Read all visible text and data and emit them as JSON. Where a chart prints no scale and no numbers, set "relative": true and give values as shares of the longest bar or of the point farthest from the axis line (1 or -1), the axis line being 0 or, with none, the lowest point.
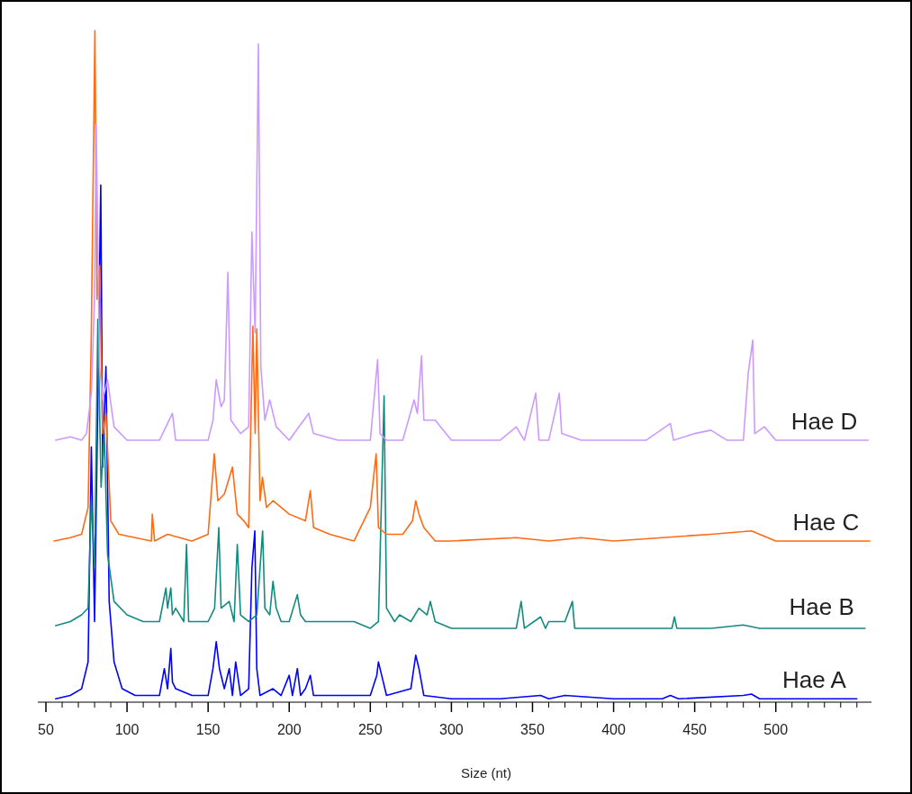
{
  "chart_data": {
    "type": "line",
    "xlabel": "Size (nt)",
    "relative": true,
    "grid": false,
    "marker": "none",
    "line_style": "solid",
    "xlim": [
      45,
      559
    ],
    "xticks": [
      50,
      {
        "value": 60,
        "label": null
      },
      {
        "value": 70,
        "label": null
      },
      {
        "value": 80,
        "label": null
      },
      {
        "value": 90,
        "label": null
      },
      100,
      {
        "value": 110,
        "label": null
      },
      {
        "value": 120,
        "label": null
      },
      {
        "value": 130,
        "label": null
      },
      {
        "value": 140,
        "label": null
      },
      150,
      {
        "value": 160,
        "label": null
      },
      {
        "value": 170,
        "label": null
      },
      {
        "value": 180,
        "label": null
      },
      {
        "value": 190,
        "label": null
      },
      200,
      {
        "value": 210,
        "label": null
      },
      {
        "value": 220,
        "label": null
      },
      {
        "value": 230,
        "label": null
      },
      {
        "value": 240,
        "label": null
      },
      250,
      {
        "value": 260,
        "label": null
      },
      {
        "value": 270,
        "label": null
      },
      {
        "value": 280,
        "label": null
      },
      {
        "value": 290,
        "label": null
      },
      300,
      {
        "value": 310,
        "label": null
      },
      {
        "value": 320,
        "label": null
      },
      {
        "value": 330,
        "label": null
      },
      {
        "value": 340,
        "label": null
      },
      350,
      {
        "value": 360,
        "label": null
      },
      {
        "value": 370,
        "label": null
      },
      {
        "value": 380,
        "label": null
      },
      {
        "value": 390,
        "label": null
      },
      400,
      {
        "value": 410,
        "label": null
      },
      {
        "value": 420,
        "label": null
      },
      {
        "value": 430,
        "label": null
      },
      {
        "value": 440,
        "label": null
      },
      450,
      {
        "value": 460,
        "label": null
      },
      {
        "value": 470,
        "label": null
      },
      {
        "value": 480,
        "label": null
      },
      {
        "value": 490,
        "label": null
      },
      500,
      {
        "value": 510,
        "label": null
      },
      {
        "value": 520,
        "label": null
      },
      {
        "value": 530,
        "label": null
      },
      {
        "value": 540,
        "label": null
      },
      {
        "value": 550,
        "label": null
      }
    ],
    "series": [
      {
        "name": "Hae A",
        "color": "#0000ff",
        "x": [
          56,
          65,
          72,
          76,
          78,
          80,
          82,
          83.8,
          85,
          87,
          89,
          92,
          97,
          105,
          120,
          123,
          125,
          127,
          128,
          130,
          140,
          150,
          153,
          155,
          157,
          160,
          163,
          165,
          167,
          170,
          175,
          177,
          178.8,
          180,
          182,
          190,
          195,
          200,
          202,
          205,
          207,
          210,
          213,
          215,
          230,
          250,
          254,
          255,
          257,
          260,
          275,
          278,
          280,
          283,
          300,
          330,
          355,
          360,
          370,
          400,
          430,
          435,
          440,
          480,
          485,
          490,
          550
        ],
        "values": [
          0.005,
          0.01,
          0.02,
          0.06,
          0.38,
          0.12,
          0.45,
          0.77,
          0.35,
          0.5,
          0.15,
          0.06,
          0.02,
          0.01,
          0.01,
          0.05,
          0.02,
          0.08,
          0.03,
          0.02,
          0.01,
          0.01,
          0.05,
          0.09,
          0.05,
          0.02,
          0.05,
          0.01,
          0.06,
          0.01,
          0.02,
          0.2,
          0.255,
          0.05,
          0.01,
          0.02,
          0.01,
          0.04,
          0.01,
          0.05,
          0.01,
          0.02,
          0.04,
          0.01,
          0.01,
          0.01,
          0.04,
          0.06,
          0.04,
          0.01,
          0.02,
          0.07,
          0.05,
          0.01,
          0.005,
          0.005,
          0.01,
          0.005,
          0.01,
          0.005,
          0.005,
          0.01,
          0.005,
          0.01,
          0.012,
          0.005,
          0.005
        ]
      },
      {
        "name": "Hae B",
        "color": "#138a7f",
        "x": [
          56,
          65,
          72,
          76,
          78,
          80,
          82,
          84,
          86,
          88,
          92,
          100,
          110,
          120,
          124,
          125,
          127,
          128,
          130,
          135,
          136.7,
          138,
          145,
          150,
          154,
          156.6,
          158,
          163,
          166,
          168,
          170,
          175,
          180,
          183.6,
          185,
          188,
          190,
          192,
          195,
          200,
          205,
          207,
          210,
          220,
          240,
          250,
          255,
          258.5,
          260,
          265,
          268,
          275,
          280,
          285,
          287,
          290,
          300,
          320,
          340,
          343,
          345,
          355,
          358,
          360,
          370,
          374.6,
          376,
          390,
          420,
          436,
          437.5,
          439,
          460,
          480,
          490,
          500,
          555
        ],
        "values": [
          0.114,
          0.12,
          0.13,
          0.14,
          0.3,
          0.2,
          0.57,
          0.32,
          0.4,
          0.22,
          0.15,
          0.13,
          0.12,
          0.12,
          0.17,
          0.14,
          0.17,
          0.13,
          0.14,
          0.12,
          0.235,
          0.12,
          0.12,
          0.12,
          0.14,
          0.26,
          0.14,
          0.15,
          0.12,
          0.235,
          0.13,
          0.12,
          0.13,
          0.255,
          0.14,
          0.13,
          0.18,
          0.14,
          0.12,
          0.12,
          0.16,
          0.13,
          0.12,
          0.12,
          0.12,
          0.11,
          0.12,
          0.456,
          0.14,
          0.12,
          0.13,
          0.12,
          0.14,
          0.13,
          0.15,
          0.12,
          0.11,
          0.11,
          0.11,
          0.15,
          0.11,
          0.127,
          0.11,
          0.12,
          0.12,
          0.15,
          0.11,
          0.11,
          0.11,
          0.11,
          0.127,
          0.11,
          0.11,
          0.115,
          0.11,
          0.11,
          0.11
        ]
      },
      {
        "name": "Hae C",
        "color": "#ff6a13",
        "x": [
          55,
          65,
          72,
          76,
          78,
          80.2,
          81.5,
          83,
          85,
          87,
          90,
          95,
          105,
          115,
          115.6,
          117,
          125,
          140,
          150,
          153.8,
          156,
          160,
          165,
          168,
          172,
          175,
          177.6,
          179,
          180,
          182,
          183.5,
          186,
          190,
          200,
          210,
          213,
          215,
          225,
          240,
          250,
          253.6,
          255,
          260,
          270,
          276,
          278,
          280,
          283,
          290,
          300,
          340,
          360,
          380,
          400,
          430,
          460,
          485,
          500,
          558
        ],
        "values": [
          0.24,
          0.245,
          0.25,
          0.29,
          0.55,
          1.0,
          0.6,
          0.65,
          0.4,
          0.43,
          0.27,
          0.25,
          0.245,
          0.24,
          0.28,
          0.24,
          0.25,
          0.24,
          0.25,
          0.37,
          0.3,
          0.31,
          0.35,
          0.28,
          0.27,
          0.26,
          0.56,
          0.4,
          0.556,
          0.3,
          0.335,
          0.29,
          0.3,
          0.28,
          0.27,
          0.315,
          0.26,
          0.25,
          0.24,
          0.29,
          0.37,
          0.26,
          0.25,
          0.25,
          0.27,
          0.3,
          0.28,
          0.26,
          0.24,
          0.24,
          0.245,
          0.24,
          0.245,
          0.24,
          0.245,
          0.25,
          0.255,
          0.24,
          0.24
        ]
      },
      {
        "name": "Hae D",
        "color": "#cc99ff",
        "x": [
          56,
          65,
          72,
          75,
          78,
          80,
          81,
          83,
          85,
          88,
          92,
          100,
          120,
          128,
          130,
          140,
          150,
          153,
          155,
          158,
          160,
          162.2,
          164,
          170,
          175,
          177,
          179,
          181,
          182.5,
          185,
          188,
          192,
          200,
          212,
          215,
          230,
          250,
          254.5,
          256,
          260,
          270,
          277,
          279,
          281.6,
          283,
          290,
          300,
          330,
          340,
          345,
          352,
          354,
          360,
          366.5,
          368,
          380,
          420,
          435,
          437,
          450,
          460,
          470,
          480,
          483,
          485.8,
          487,
          493,
          500,
          557
        ],
        "values": [
          0.39,
          0.395,
          0.39,
          0.4,
          0.46,
          0.6,
          0.86,
          0.5,
          0.45,
          0.48,
          0.41,
          0.39,
          0.39,
          0.43,
          0.39,
          0.39,
          0.39,
          0.42,
          0.48,
          0.44,
          0.45,
          0.64,
          0.42,
          0.4,
          0.41,
          0.7,
          0.55,
          0.98,
          0.5,
          0.42,
          0.45,
          0.41,
          0.39,
          0.43,
          0.4,
          0.39,
          0.39,
          0.51,
          0.4,
          0.39,
          0.39,
          0.45,
          0.43,
          0.516,
          0.42,
          0.42,
          0.39,
          0.39,
          0.41,
          0.39,
          0.46,
          0.39,
          0.39,
          0.46,
          0.4,
          0.39,
          0.39,
          0.415,
          0.39,
          0.4,
          0.405,
          0.39,
          0.39,
          0.49,
          0.539,
          0.4,
          0.41,
          0.39,
          0.39
        ]
      }
    ]
  }
}
